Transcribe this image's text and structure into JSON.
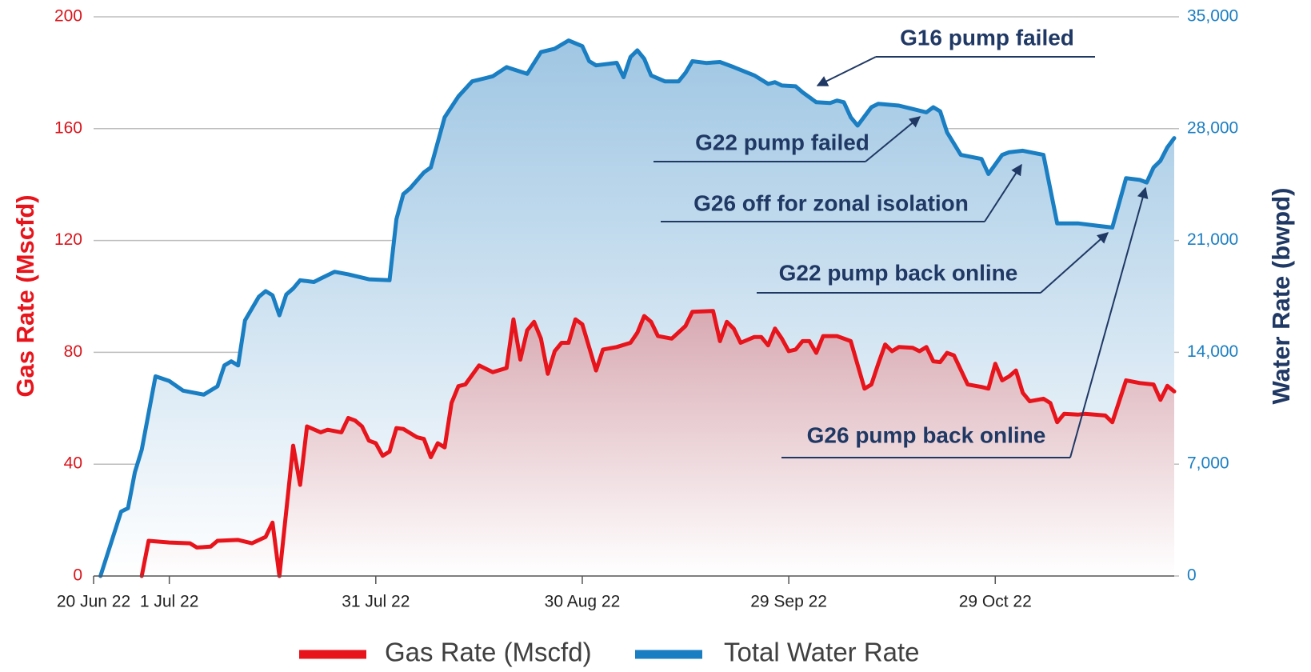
{
  "chart_data": {
    "type": "line",
    "area": true,
    "grid": true,
    "legend": "bottom",
    "ylabel": "Gas Rate (Mscfd)",
    "y2label": "Water Rate (bwpd)",
    "xlim": [
      "2022-06-20",
      "2022-11-24"
    ],
    "xticks": [
      {
        "value": "2022-06-20",
        "label": "20 Jun 22"
      },
      {
        "value": "2022-07-01",
        "label": "1 Jul 22"
      },
      {
        "value": "2022-07-31",
        "label": "31 Jul 22"
      },
      {
        "value": "2022-08-30",
        "label": "30 Aug 22"
      },
      {
        "value": "2022-09-29",
        "label": "29 Sep 22"
      },
      {
        "value": "2022-10-29",
        "label": "29 Oct 22"
      }
    ],
    "ylim": [
      0,
      200
    ],
    "yticks": [
      0,
      40,
      80,
      120,
      160,
      200
    ],
    "y2lim": [
      0,
      35000
    ],
    "y2ticks": [
      0,
      {
        "value": 7000,
        "label": "7,000"
      },
      {
        "value": 14000,
        "label": "14,000"
      },
      {
        "value": 21000,
        "label": "21,000"
      },
      {
        "value": 28000,
        "label": "28,000"
      },
      {
        "value": 35000,
        "label": "35,000"
      }
    ],
    "series": [
      {
        "name": "Gas Rate (Mscfd)",
        "color": "#e8141b",
        "axis": "y",
        "x": [
          "2022-06-27",
          "2022-06-28",
          "2022-07-01",
          "2022-07-04",
          "2022-07-05",
          "2022-07-07",
          "2022-07-08",
          "2022-07-11",
          "2022-07-13",
          "2022-07-15",
          "2022-07-16",
          "2022-07-17",
          "2022-07-19",
          "2022-07-20",
          "2022-07-21",
          "2022-07-23",
          "2022-07-24",
          "2022-07-26",
          "2022-07-27",
          "2022-07-28",
          "2022-07-29",
          "2022-07-30",
          "2022-07-31",
          "2022-08-01",
          "2022-08-02",
          "2022-08-03",
          "2022-08-04",
          "2022-08-06",
          "2022-08-07",
          "2022-08-08",
          "2022-08-09",
          "2022-08-10",
          "2022-08-11",
          "2022-08-12",
          "2022-08-13",
          "2022-08-15",
          "2022-08-17",
          "2022-08-19",
          "2022-08-20",
          "2022-08-21",
          "2022-08-22",
          "2022-08-23",
          "2022-08-24",
          "2022-08-25",
          "2022-08-26",
          "2022-08-27",
          "2022-08-28",
          "2022-08-29",
          "2022-08-30",
          "2022-09-01",
          "2022-09-02",
          "2022-09-04",
          "2022-09-06",
          "2022-09-07",
          "2022-09-08",
          "2022-09-09",
          "2022-09-10",
          "2022-09-12",
          "2022-09-14",
          "2022-09-15",
          "2022-09-18",
          "2022-09-19",
          "2022-09-20",
          "2022-09-21",
          "2022-09-22",
          "2022-09-24",
          "2022-09-25",
          "2022-09-26",
          "2022-09-27",
          "2022-09-28",
          "2022-09-29",
          "2022-09-30",
          "2022-10-01",
          "2022-10-02",
          "2022-10-03",
          "2022-10-04",
          "2022-10-06",
          "2022-10-08",
          "2022-10-10",
          "2022-10-11",
          "2022-10-12",
          "2022-10-13",
          "2022-10-14",
          "2022-10-15",
          "2022-10-17",
          "2022-10-18",
          "2022-10-19",
          "2022-10-20",
          "2022-10-21",
          "2022-10-22",
          "2022-10-23",
          "2022-10-25",
          "2022-10-27",
          "2022-10-28",
          "2022-10-29",
          "2022-10-30",
          "2022-10-31",
          "2022-11-01",
          "2022-11-02",
          "2022-11-03",
          "2022-11-05",
          "2022-11-06",
          "2022-11-07",
          "2022-11-08",
          "2022-11-10",
          "2022-11-11",
          "2022-11-14",
          "2022-11-15",
          "2022-11-17",
          "2022-11-19",
          "2022-11-21",
          "2022-11-22",
          "2022-11-23",
          "2022-11-24"
        ],
        "values": [
          0,
          12.6,
          12,
          11.7,
          10.2,
          10.5,
          12.6,
          12.9,
          11.7,
          14,
          19.1,
          0,
          46.6,
          32.6,
          53.5,
          51.4,
          52.3,
          51.4,
          56.5,
          55.6,
          53.5,
          48.4,
          47.5,
          43,
          44.5,
          52.9,
          52.6,
          49.6,
          49,
          42.5,
          47.5,
          46,
          61.9,
          67.9,
          68.5,
          75.3,
          72.9,
          74.4,
          91.8,
          77.4,
          87.9,
          90.9,
          84.9,
          72.3,
          80.4,
          83.4,
          83.4,
          91.8,
          90,
          73.5,
          81,
          81.9,
          83.4,
          87,
          93,
          90.9,
          85.8,
          84.9,
          89.4,
          94.5,
          94.8,
          84,
          90.9,
          88.5,
          83.4,
          85.5,
          85.5,
          82.5,
          88.5,
          84.9,
          80.4,
          81,
          84,
          84,
          79.8,
          85.8,
          85.8,
          84,
          67,
          68.5,
          75.9,
          82.8,
          80.4,
          81.9,
          81.6,
          80.4,
          81.9,
          76.8,
          76.5,
          79.8,
          78.9,
          68.5,
          67.6,
          67,
          75.9,
          70,
          71.4,
          73.5,
          65.5,
          62.5,
          63.4,
          61.9,
          55,
          58,
          57.7,
          58,
          57.4,
          55,
          70,
          69,
          68.5,
          63,
          68,
          66
        ]
      },
      {
        "name": "Total Water Rate",
        "color": "#1a7ec2",
        "axis": "y2",
        "x": [
          "2022-06-21",
          "2022-06-24",
          "2022-06-25",
          "2022-06-26",
          "2022-06-27",
          "2022-06-29",
          "2022-07-01",
          "2022-07-03",
          "2022-07-06",
          "2022-07-08",
          "2022-07-09",
          "2022-07-10",
          "2022-07-11",
          "2022-07-12",
          "2022-07-14",
          "2022-07-15",
          "2022-07-16",
          "2022-07-17",
          "2022-07-18",
          "2022-07-19",
          "2022-07-20",
          "2022-07-22",
          "2022-07-23",
          "2022-07-25",
          "2022-07-27",
          "2022-07-30",
          "2022-08-02",
          "2022-08-03",
          "2022-08-04",
          "2022-08-05",
          "2022-08-07",
          "2022-08-08",
          "2022-08-10",
          "2022-08-12",
          "2022-08-14",
          "2022-08-16",
          "2022-08-17",
          "2022-08-19",
          "2022-08-22",
          "2022-08-24",
          "2022-08-26",
          "2022-08-28",
          "2022-08-30",
          "2022-08-31",
          "2022-09-01",
          "2022-09-04",
          "2022-09-05",
          "2022-09-06",
          "2022-09-07",
          "2022-09-08",
          "2022-09-09",
          "2022-09-11",
          "2022-09-13",
          "2022-09-14",
          "2022-09-15",
          "2022-09-17",
          "2022-09-19",
          "2022-09-21",
          "2022-09-24",
          "2022-09-26",
          "2022-09-27",
          "2022-09-28",
          "2022-09-30",
          "2022-10-01",
          "2022-10-03",
          "2022-10-05",
          "2022-10-06",
          "2022-10-07",
          "2022-10-08",
          "2022-10-09",
          "2022-10-11",
          "2022-10-12",
          "2022-10-15",
          "2022-10-17",
          "2022-10-19",
          "2022-10-20",
          "2022-10-21",
          "2022-10-22",
          "2022-10-24",
          "2022-10-27",
          "2022-10-28",
          "2022-10-30",
          "2022-10-31",
          "2022-11-02",
          "2022-11-05",
          "2022-11-07",
          "2022-11-10",
          "2022-11-13",
          "2022-11-15",
          "2022-11-17",
          "2022-11-19",
          "2022-11-20",
          "2022-11-21",
          "2022-11-22",
          "2022-11-23",
          "2022-11-24"
        ],
        "values": [
          0,
          4030,
          4240,
          6490,
          7900,
          12500,
          12200,
          11600,
          11350,
          11870,
          13180,
          13440,
          13180,
          16000,
          17470,
          17830,
          17570,
          16320,
          17620,
          17990,
          18510,
          18400,
          18620,
          19040,
          18880,
          18570,
          18510,
          22330,
          23900,
          24270,
          25260,
          25570,
          28710,
          30020,
          30960,
          31170,
          31280,
          31850,
          31430,
          32790,
          33000,
          33520,
          33160,
          32220,
          31960,
          32120,
          31220,
          32480,
          32900,
          32370,
          31330,
          30960,
          30960,
          31490,
          32220,
          32110,
          32170,
          31850,
          31330,
          30800,
          30910,
          30700,
          30650,
          30280,
          29650,
          29600,
          29760,
          29650,
          28710,
          28190,
          29340,
          29550,
          29440,
          29230,
          29020,
          29340,
          29080,
          27770,
          26360,
          26100,
          25160,
          26360,
          26520,
          26620,
          26360,
          22070,
          22070,
          21910,
          21810,
          24900,
          24790,
          24630,
          25570,
          25990,
          26830,
          27410
        ]
      }
    ],
    "annotations": [
      "G16 pump failed",
      "G22 pump failed",
      "G26 off for zonal isolation",
      "G22 pump back online",
      "G26 pump back online"
    ]
  }
}
